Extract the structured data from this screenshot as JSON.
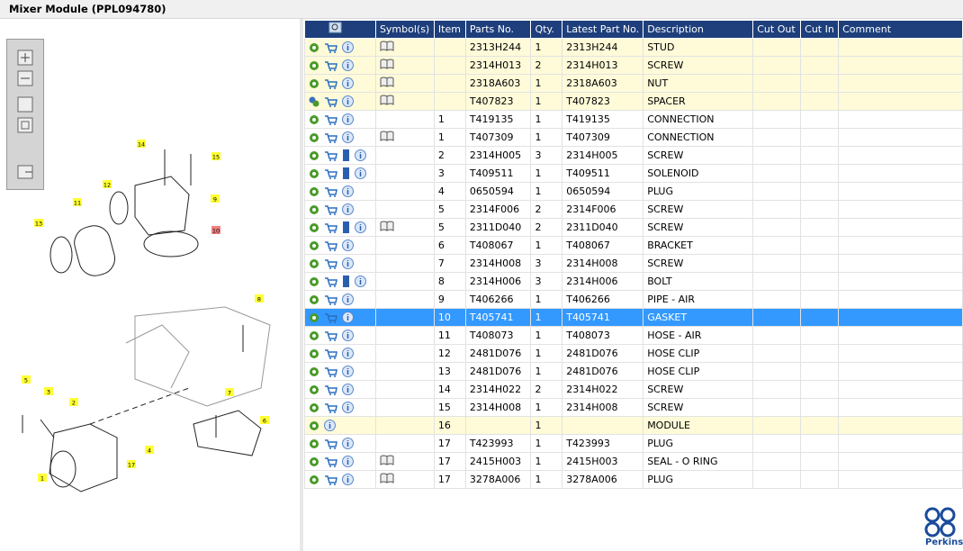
{
  "title": "Mixer Module (PPL094780)",
  "table": {
    "columns": [
      "Symbol(s)",
      "Item",
      "Parts No.",
      "Qty.",
      "Latest Part No.",
      "Description",
      "Cut Out",
      "Cut In",
      "Comment"
    ],
    "rows": [
      {
        "part": "2313H244",
        "qty": 1,
        "latest": "2313H244",
        "desc": "STUD"
      },
      {
        "part": "2314H013",
        "qty": 2,
        "latest": "2314H013",
        "desc": "SCREW"
      },
      {
        "part": "2318A603",
        "qty": 1,
        "latest": "2318A603",
        "desc": "NUT"
      },
      {
        "part": "T407823",
        "qty": 1,
        "latest": "T407823",
        "desc": "SPACER"
      },
      {
        "item": 1,
        "part": "T419135",
        "qty": 1,
        "latest": "T419135",
        "desc": "CONNECTION"
      },
      {
        "item": 1,
        "part": "T407309",
        "qty": 1,
        "latest": "T407309",
        "desc": "CONNECTION"
      },
      {
        "item": 2,
        "part": "2314H005",
        "qty": 3,
        "latest": "2314H005",
        "desc": "SCREW"
      },
      {
        "item": 3,
        "part": "T409511",
        "qty": 1,
        "latest": "T409511",
        "desc": "SOLENOID"
      },
      {
        "item": 4,
        "part": "0650594",
        "qty": 1,
        "latest": "0650594",
        "desc": "PLUG"
      },
      {
        "item": 5,
        "part": "2314F006",
        "qty": 2,
        "latest": "2314F006",
        "desc": "SCREW"
      },
      {
        "item": 5,
        "part": "2311D040",
        "qty": 2,
        "latest": "2311D040",
        "desc": "SCREW"
      },
      {
        "item": 6,
        "part": "T408067",
        "qty": 1,
        "latest": "T408067",
        "desc": "BRACKET"
      },
      {
        "item": 7,
        "part": "2314H008",
        "qty": 3,
        "latest": "2314H008",
        "desc": "SCREW"
      },
      {
        "item": 8,
        "part": "2314H006",
        "qty": 3,
        "latest": "2314H006",
        "desc": "BOLT"
      },
      {
        "item": 9,
        "part": "T406266",
        "qty": 1,
        "latest": "T406266",
        "desc": "PIPE - AIR"
      },
      {
        "item": 10,
        "part": "T405741",
        "qty": 1,
        "latest": "T405741",
        "desc": "GASKET"
      },
      {
        "item": 11,
        "part": "T408073",
        "qty": 1,
        "latest": "T408073",
        "desc": "HOSE - AIR"
      },
      {
        "item": 12,
        "part": "2481D076",
        "qty": 1,
        "latest": "2481D076",
        "desc": "HOSE CLIP"
      },
      {
        "item": 13,
        "part": "2481D076",
        "qty": 1,
        "latest": "2481D076",
        "desc": "HOSE CLIP"
      },
      {
        "item": 14,
        "part": "2314H022",
        "qty": 2,
        "latest": "2314H022",
        "desc": "SCREW"
      },
      {
        "item": 15,
        "part": "2314H008",
        "qty": 1,
        "latest": "2314H008",
        "desc": "SCREW"
      },
      {
        "item": 16,
        "qty": 1,
        "desc": "MODULE"
      },
      {
        "item": 17,
        "part": "T423993",
        "qty": 1,
        "latest": "T423993",
        "desc": "PLUG"
      },
      {
        "item": 17,
        "part": "2415H003",
        "qty": 1,
        "latest": "2415H003",
        "desc": "SEAL - O RING"
      },
      {
        "item": 17,
        "part": "3278A006",
        "qty": 1,
        "latest": "3278A006",
        "desc": "PLUG"
      }
    ]
  },
  "diagram": {
    "callouts": [
      "14",
      "15",
      "12",
      "11",
      "9",
      "13",
      "10",
      "8",
      "5",
      "3",
      "2",
      "7",
      "6",
      "4",
      "17",
      "1"
    ]
  },
  "logo": {
    "text": "Perkins"
  }
}
